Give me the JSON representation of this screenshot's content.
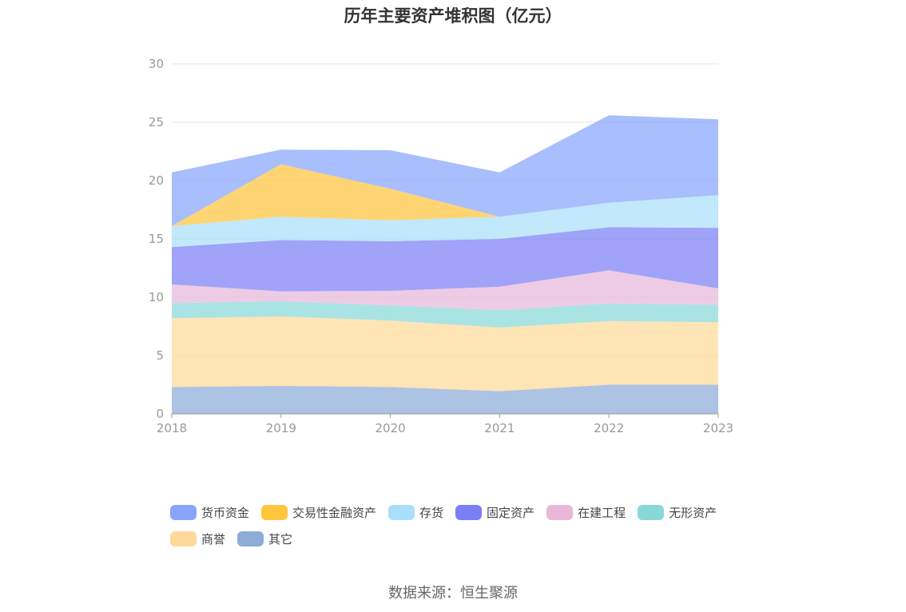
{
  "chart_data": {
    "type": "area",
    "stacked": true,
    "title": "历年主要资产堆积图（亿元）",
    "x": [
      "2018",
      "2019",
      "2020",
      "2021",
      "2022",
      "2023"
    ],
    "ylim": [
      0,
      30
    ],
    "yticks": [
      0,
      5,
      10,
      15,
      20,
      25,
      30
    ],
    "grid": true,
    "legend_position": "bottom",
    "series": [
      {
        "name": "其它",
        "color": "#8eacd8",
        "values": [
          2.3,
          2.4,
          2.3,
          1.95,
          2.5,
          2.5
        ]
      },
      {
        "name": "商誉",
        "color": "#ffd99a",
        "values": [
          5.9,
          5.95,
          5.7,
          5.45,
          5.45,
          5.35
        ]
      },
      {
        "name": "无形资产",
        "color": "#89d8d8",
        "values": [
          1.3,
          1.3,
          1.3,
          1.5,
          1.5,
          1.5
        ]
      },
      {
        "name": "在建工程",
        "color": "#e8b7d9",
        "values": [
          1.6,
          0.85,
          1.25,
          2.0,
          2.85,
          1.4
        ]
      },
      {
        "name": "固定资产",
        "color": "#7b7ff5",
        "values": [
          3.2,
          4.4,
          4.25,
          4.1,
          3.7,
          5.2
        ]
      },
      {
        "name": "存货",
        "color": "#aadffb",
        "values": [
          1.8,
          2.0,
          1.8,
          1.9,
          2.1,
          2.8
        ]
      },
      {
        "name": "交易性金融资产",
        "color": "#ffc53d",
        "values": [
          0.0,
          4.5,
          2.7,
          0.0,
          0.0,
          0.0
        ]
      },
      {
        "name": "货币资金",
        "color": "#88a5fb",
        "values": [
          4.6,
          1.25,
          3.3,
          3.8,
          7.5,
          6.5
        ]
      }
    ]
  },
  "legend_order": [
    "货币资金",
    "交易性金融资产",
    "存货",
    "固定资产",
    "在建工程",
    "无形资产",
    "商誉",
    "其它"
  ],
  "source": "数据来源：恒生聚源"
}
